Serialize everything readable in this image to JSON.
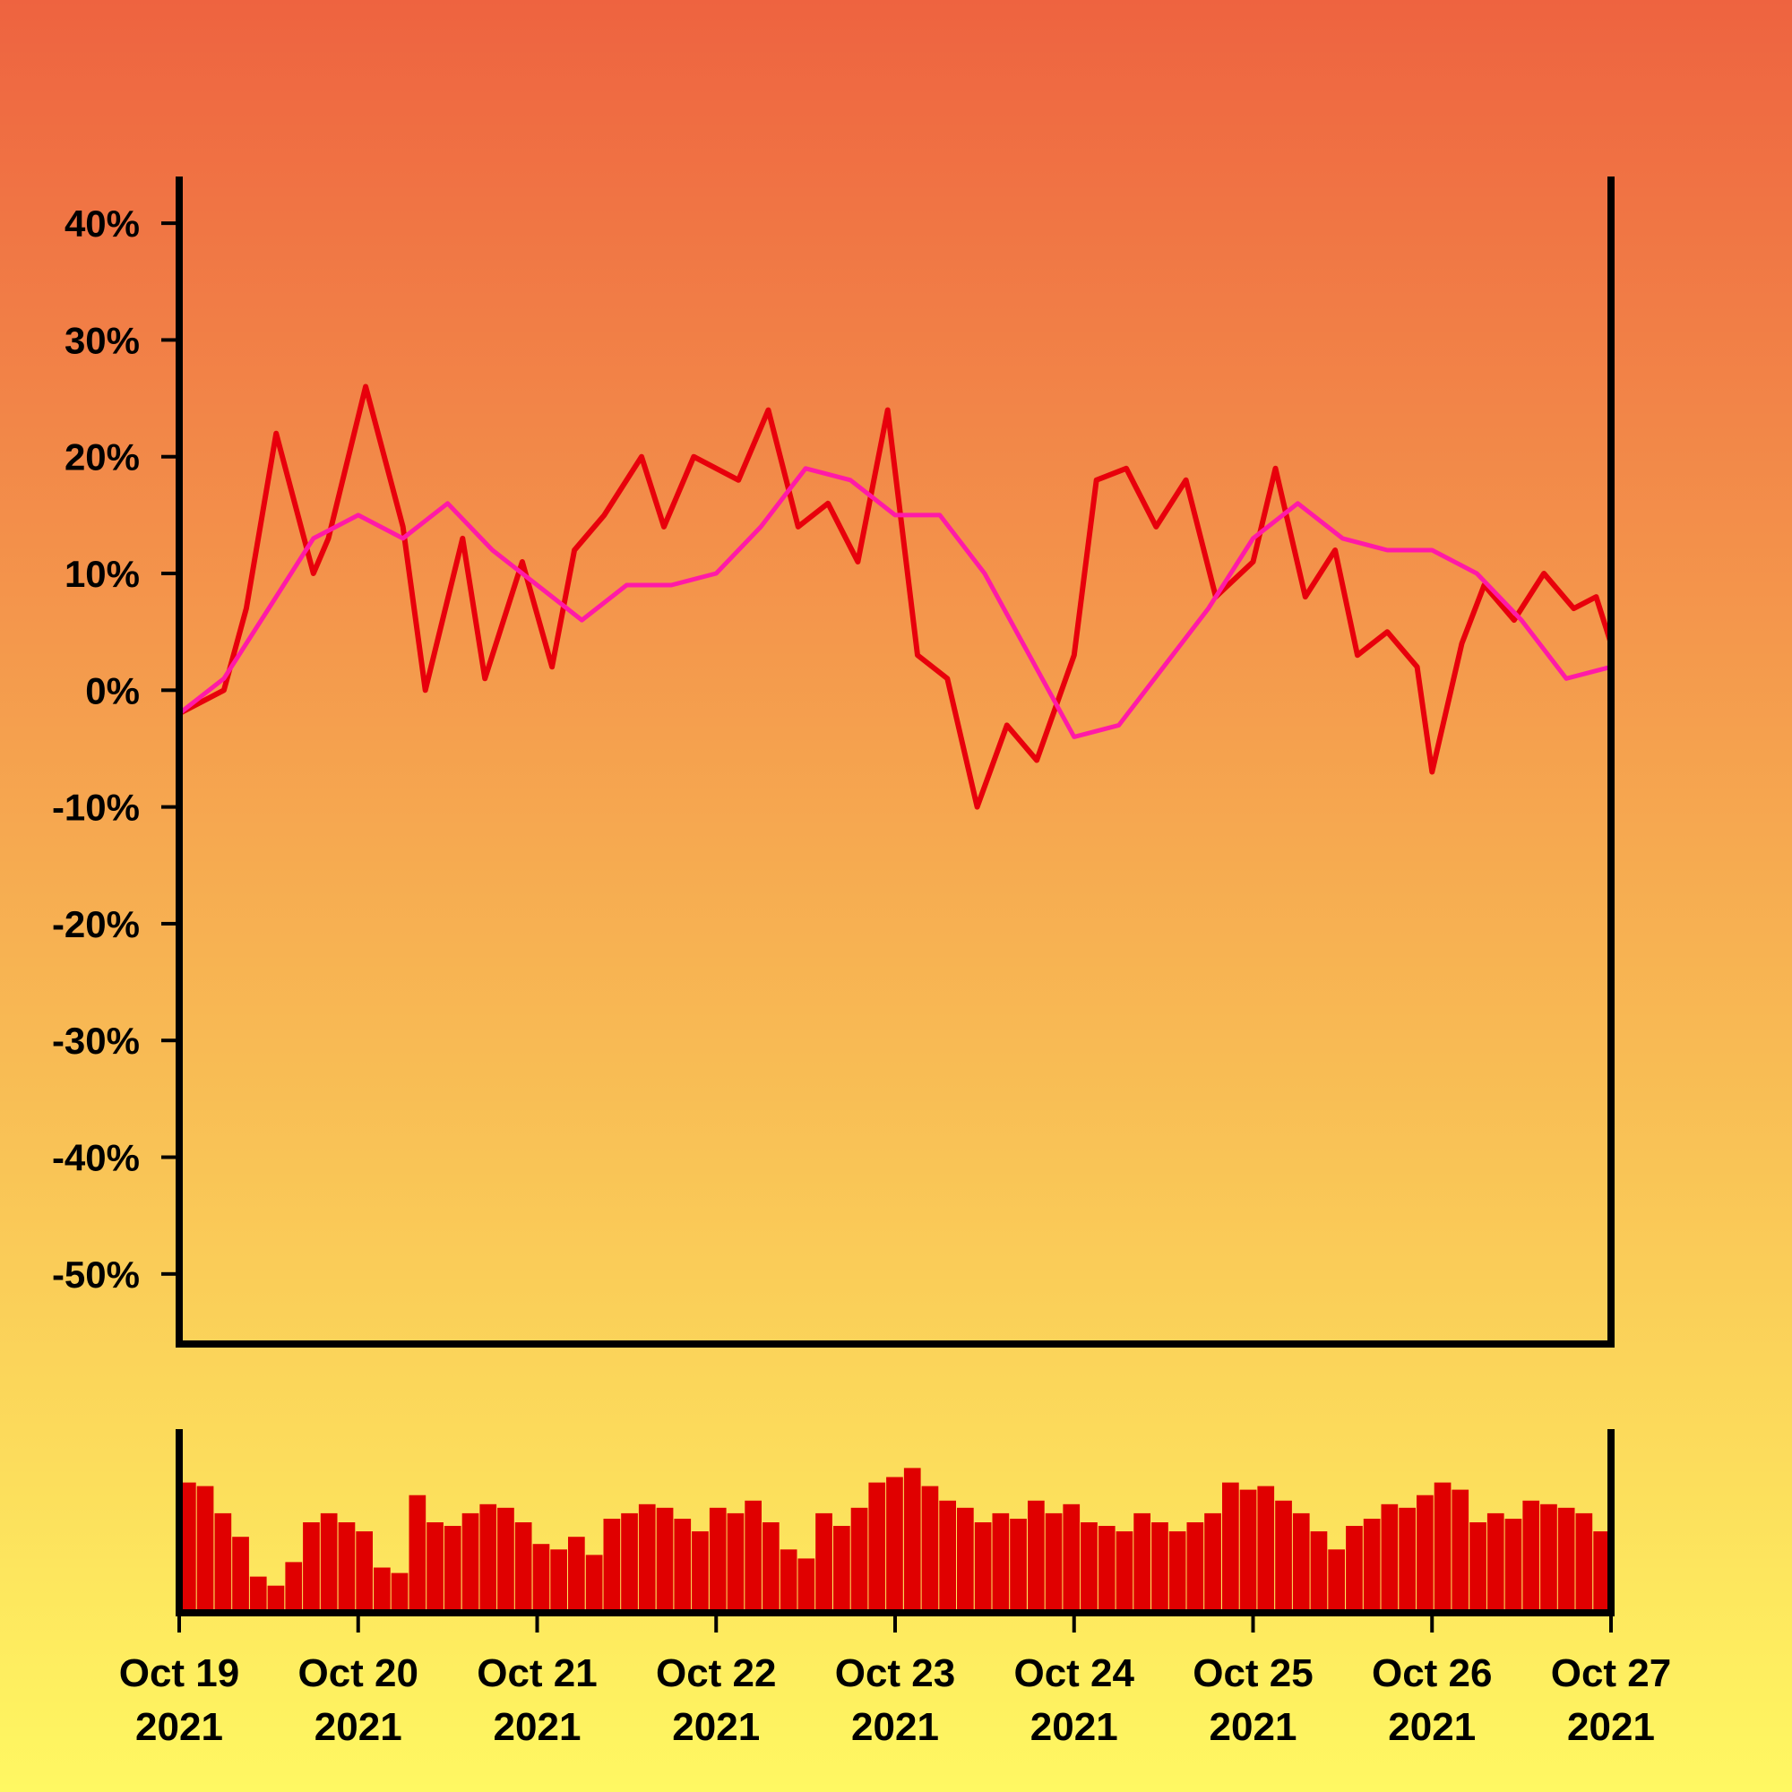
{
  "background": {
    "top_color": "#ee6340",
    "bottom_color": "#fff862"
  },
  "colors": {
    "price_line": "#e8000b",
    "moving_average": "#ff1aa8",
    "volume_bars": "#e00000",
    "axes": "#000000"
  },
  "chart_data": [
    {
      "type": "line",
      "title": "",
      "xlabel": "",
      "ylabel": "",
      "x_range": [
        "2021-10-19",
        "2021-10-27"
      ],
      "ylim": [
        -0.56,
        0.44
      ],
      "y_ticks": [
        {
          "value": 0.4,
          "label": "40%"
        },
        {
          "value": 0.3,
          "label": "30%"
        },
        {
          "value": 0.2,
          "label": "20%"
        },
        {
          "value": 0.1,
          "label": "10%"
        },
        {
          "value": 0.0,
          "label": "0%"
        },
        {
          "value": -0.1,
          "label": "-10%"
        },
        {
          "value": -0.2,
          "label": "-20%"
        },
        {
          "value": -0.3,
          "label": "-30%"
        },
        {
          "value": -0.4,
          "label": "-40%"
        },
        {
          "value": -0.5,
          "label": "-50%"
        }
      ],
      "grid": false,
      "series": [
        {
          "role": "price",
          "x": [
            "2021-10-19 00:00",
            "2021-10-19 06:00",
            "2021-10-19 09:00",
            "2021-10-19 13:00",
            "2021-10-19 18:00",
            "2021-10-19 20:00",
            "2021-10-20 01:00",
            "2021-10-20 06:00",
            "2021-10-20 09:00",
            "2021-10-20 14:00",
            "2021-10-20 17:00",
            "2021-10-20 22:00",
            "2021-10-21 02:00",
            "2021-10-21 05:00",
            "2021-10-21 09:00",
            "2021-10-21 14:00",
            "2021-10-21 17:00",
            "2021-10-21 21:00",
            "2021-10-22 03:00",
            "2021-10-22 07:00",
            "2021-10-22 11:00",
            "2021-10-22 15:00",
            "2021-10-22 19:00",
            "2021-10-22 23:00",
            "2021-10-23 03:00",
            "2021-10-23 07:00",
            "2021-10-23 11:00",
            "2021-10-23 15:00",
            "2021-10-23 19:00",
            "2021-10-24 00:00",
            "2021-10-24 03:00",
            "2021-10-24 07:00",
            "2021-10-24 11:00",
            "2021-10-24 15:00",
            "2021-10-24 19:00",
            "2021-10-25 00:00",
            "2021-10-25 03:00",
            "2021-10-25 07:00",
            "2021-10-25 11:00",
            "2021-10-25 14:00",
            "2021-10-25 18:00",
            "2021-10-25 22:00",
            "2021-10-26 00:00",
            "2021-10-26 04:00",
            "2021-10-26 07:00",
            "2021-10-26 11:00",
            "2021-10-26 15:00",
            "2021-10-26 19:00",
            "2021-10-26 22:00",
            "2021-10-27 00:00"
          ],
          "y": [
            -0.02,
            0.0,
            0.07,
            0.22,
            0.1,
            0.13,
            0.26,
            0.14,
            0.0,
            0.13,
            0.01,
            0.11,
            0.02,
            0.12,
            0.15,
            0.2,
            0.14,
            0.2,
            0.18,
            0.24,
            0.14,
            0.16,
            0.11,
            0.24,
            0.03,
            0.01,
            -0.1,
            -0.03,
            -0.06,
            0.03,
            0.18,
            0.19,
            0.14,
            0.18,
            0.08,
            0.11,
            0.19,
            0.08,
            0.12,
            0.03,
            0.05,
            0.02,
            -0.07,
            0.04,
            0.09,
            0.06,
            0.1,
            0.07,
            0.08,
            0.04
          ]
        },
        {
          "role": "moving_average",
          "x": [
            "2021-10-19 00:00",
            "2021-10-19 06:00",
            "2021-10-19 12:00",
            "2021-10-19 18:00",
            "2021-10-20 00:00",
            "2021-10-20 06:00",
            "2021-10-20 12:00",
            "2021-10-20 18:00",
            "2021-10-21 00:00",
            "2021-10-21 06:00",
            "2021-10-21 12:00",
            "2021-10-21 18:00",
            "2021-10-22 00:00",
            "2021-10-22 06:00",
            "2021-10-22 12:00",
            "2021-10-22 18:00",
            "2021-10-23 00:00",
            "2021-10-23 06:00",
            "2021-10-23 12:00",
            "2021-10-23 18:00",
            "2021-10-24 00:00",
            "2021-10-24 06:00",
            "2021-10-24 12:00",
            "2021-10-24 18:00",
            "2021-10-25 00:00",
            "2021-10-25 06:00",
            "2021-10-25 12:00",
            "2021-10-25 18:00",
            "2021-10-26 00:00",
            "2021-10-26 06:00",
            "2021-10-26 12:00",
            "2021-10-26 18:00",
            "2021-10-27 00:00"
          ],
          "y": [
            -0.02,
            0.01,
            0.07,
            0.13,
            0.15,
            0.13,
            0.16,
            0.12,
            0.09,
            0.06,
            0.09,
            0.09,
            0.1,
            0.14,
            0.19,
            0.18,
            0.15,
            0.15,
            0.1,
            0.03,
            -0.04,
            -0.03,
            0.02,
            0.07,
            0.13,
            0.16,
            0.13,
            0.12,
            0.12,
            0.1,
            0.06,
            0.01,
            0.02
          ]
        }
      ]
    },
    {
      "type": "bar",
      "title": "",
      "role": "volume",
      "x_range": [
        "2021-10-19",
        "2021-10-27"
      ],
      "x_ticks": [
        {
          "value": "2021-10-19",
          "label_line1": "Oct 19",
          "label_line2": "2021"
        },
        {
          "value": "2021-10-20",
          "label_line1": "Oct 20",
          "label_line2": "2021"
        },
        {
          "value": "2021-10-21",
          "label_line1": "Oct 21",
          "label_line2": "2021"
        },
        {
          "value": "2021-10-22",
          "label_line1": "Oct 22",
          "label_line2": "2021"
        },
        {
          "value": "2021-10-23",
          "label_line1": "Oct 23",
          "label_line2": "2021"
        },
        {
          "value": "2021-10-24",
          "label_line1": "Oct 24",
          "label_line2": "2021"
        },
        {
          "value": "2021-10-25",
          "label_line1": "Oct 25",
          "label_line2": "2021"
        },
        {
          "value": "2021-10-26",
          "label_line1": "Oct 26",
          "label_line2": "2021"
        },
        {
          "value": "2021-10-27",
          "label_line1": "Oct 27",
          "label_line2": "2021"
        }
      ],
      "values": [
        0.72,
        0.7,
        0.55,
        0.42,
        0.2,
        0.15,
        0.28,
        0.5,
        0.55,
        0.5,
        0.45,
        0.25,
        0.22,
        0.65,
        0.5,
        0.48,
        0.55,
        0.6,
        0.58,
        0.5,
        0.38,
        0.35,
        0.42,
        0.32,
        0.52,
        0.55,
        0.6,
        0.58,
        0.52,
        0.45,
        0.58,
        0.55,
        0.62,
        0.5,
        0.35,
        0.3,
        0.55,
        0.48,
        0.58,
        0.72,
        0.75,
        0.8,
        0.7,
        0.62,
        0.58,
        0.5,
        0.55,
        0.52,
        0.62,
        0.55,
        0.6,
        0.5,
        0.48,
        0.45,
        0.55,
        0.5,
        0.45,
        0.5,
        0.55,
        0.72,
        0.68,
        0.7,
        0.62,
        0.55,
        0.45,
        0.35,
        0.48,
        0.52,
        0.6,
        0.58,
        0.65,
        0.72,
        0.68,
        0.5,
        0.55,
        0.52,
        0.62,
        0.6,
        0.58,
        0.55,
        0.45
      ]
    }
  ]
}
